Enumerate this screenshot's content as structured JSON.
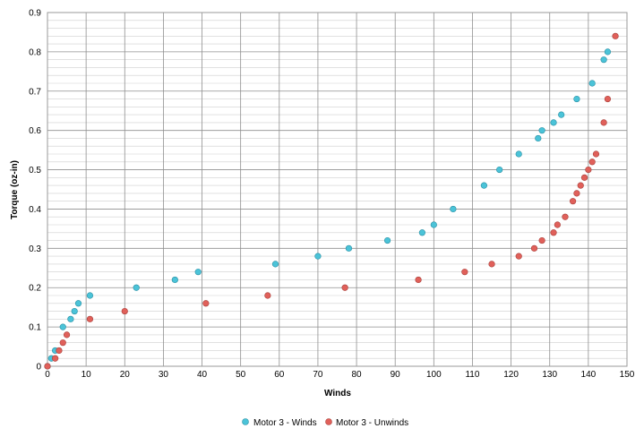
{
  "chart_data": {
    "type": "scatter",
    "title": "",
    "xlabel": "Winds",
    "ylabel": "Torque (oz-in)",
    "xlim": [
      0,
      150
    ],
    "ylim": [
      0,
      0.9
    ],
    "x_ticks": [
      0,
      10,
      20,
      30,
      40,
      50,
      60,
      70,
      80,
      90,
      100,
      110,
      120,
      130,
      140,
      150
    ],
    "y_ticks": [
      0,
      0.1,
      0.2,
      0.3,
      0.4,
      0.5,
      0.6,
      0.7,
      0.8,
      0.9
    ],
    "x_tick_labels": [
      "0",
      "10",
      "20",
      "30",
      "40",
      "50",
      "60",
      "70",
      "80",
      "90",
      "100",
      "110",
      "120",
      "130",
      "140",
      "150"
    ],
    "y_tick_labels": [
      "0",
      "0.1",
      "0.2",
      "0.3",
      "0.4",
      "0.5",
      "0.6",
      "0.7",
      "0.8",
      "0.9"
    ],
    "grid": "on",
    "legend_position": "bottom",
    "series": [
      {
        "name": "Motor 3 - Winds",
        "color": "#4bc3d8",
        "points": [
          [
            0,
            0
          ],
          [
            1,
            0.02
          ],
          [
            2,
            0.04
          ],
          [
            4,
            0.1
          ],
          [
            6,
            0.12
          ],
          [
            7,
            0.14
          ],
          [
            8,
            0.16
          ],
          [
            11,
            0.18
          ],
          [
            23,
            0.2
          ],
          [
            33,
            0.22
          ],
          [
            39,
            0.24
          ],
          [
            59,
            0.26
          ],
          [
            70,
            0.28
          ],
          [
            78,
            0.3
          ],
          [
            88,
            0.32
          ],
          [
            97,
            0.34
          ],
          [
            100,
            0.36
          ],
          [
            105,
            0.4
          ],
          [
            113,
            0.46
          ],
          [
            117,
            0.5
          ],
          [
            122,
            0.54
          ],
          [
            127,
            0.58
          ],
          [
            128,
            0.6
          ],
          [
            131,
            0.62
          ],
          [
            133,
            0.64
          ],
          [
            137,
            0.68
          ],
          [
            141,
            0.72
          ],
          [
            144,
            0.78
          ],
          [
            145,
            0.8
          ]
        ]
      },
      {
        "name": "Motor 3 - Unwinds",
        "color": "#e0605a",
        "points": [
          [
            0,
            0
          ],
          [
            2,
            0.02
          ],
          [
            3,
            0.04
          ],
          [
            4,
            0.06
          ],
          [
            5,
            0.08
          ],
          [
            11,
            0.12
          ],
          [
            20,
            0.14
          ],
          [
            41,
            0.16
          ],
          [
            57,
            0.18
          ],
          [
            77,
            0.2
          ],
          [
            96,
            0.22
          ],
          [
            108,
            0.24
          ],
          [
            115,
            0.26
          ],
          [
            122,
            0.28
          ],
          [
            126,
            0.3
          ],
          [
            128,
            0.32
          ],
          [
            131,
            0.34
          ],
          [
            132,
            0.36
          ],
          [
            134,
            0.38
          ],
          [
            136,
            0.42
          ],
          [
            137,
            0.44
          ],
          [
            138,
            0.46
          ],
          [
            139,
            0.48
          ],
          [
            140,
            0.5
          ],
          [
            141,
            0.52
          ],
          [
            142,
            0.54
          ],
          [
            144,
            0.62
          ],
          [
            145,
            0.68
          ],
          [
            147,
            0.84
          ]
        ]
      }
    ]
  }
}
